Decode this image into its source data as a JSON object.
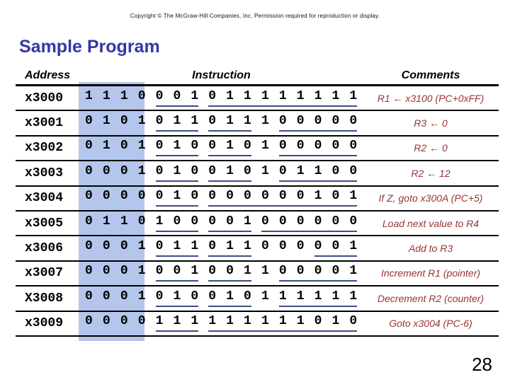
{
  "slide": {
    "copyright": "Copyright © The McGraw-Hill Companies, Inc. Permission required for reproduction or display.",
    "title": "Sample Program",
    "page_number": "28"
  },
  "colors": {
    "title": "#3636a8",
    "comment": "#993333",
    "highlight_band": "#b4c6ec",
    "underline": "#3d4c85"
  },
  "table": {
    "headers": [
      "Address",
      "Instruction",
      "Comments"
    ],
    "rows": [
      {
        "address": "x3000",
        "bit_groups": [
          {
            "bits": "1110",
            "underline": false
          },
          {
            "bits": "001",
            "underline": true
          },
          {
            "bits": "011111111",
            "underline": true
          }
        ],
        "comment": "R1 ← x3100 (PC+0xFF)"
      },
      {
        "address": "x3001",
        "bit_groups": [
          {
            "bits": "0101",
            "underline": false
          },
          {
            "bits": "011",
            "underline": true
          },
          {
            "bits": "011",
            "underline": true
          },
          {
            "bits": "1",
            "underline": false
          },
          {
            "bits": "00000",
            "underline": true
          }
        ],
        "comment": "R3 ← 0"
      },
      {
        "address": "x3002",
        "bit_groups": [
          {
            "bits": "0101",
            "underline": false
          },
          {
            "bits": "010",
            "underline": true
          },
          {
            "bits": "010",
            "underline": true
          },
          {
            "bits": "1",
            "underline": false
          },
          {
            "bits": "00000",
            "underline": true
          }
        ],
        "comment": "R2 ← 0"
      },
      {
        "address": "x3003",
        "bit_groups": [
          {
            "bits": "0001",
            "underline": false
          },
          {
            "bits": "010",
            "underline": true
          },
          {
            "bits": "010",
            "underline": true
          },
          {
            "bits": "1",
            "underline": false
          },
          {
            "bits": "01100",
            "underline": true
          }
        ],
        "comment": "R2 ← 12"
      },
      {
        "address": "x3004",
        "bit_groups": [
          {
            "bits": "0000",
            "underline": false
          },
          {
            "bits": "010",
            "underline": true
          },
          {
            "bits": "000000101",
            "underline": true
          }
        ],
        "comment": "If Z, goto x300A (PC+5)"
      },
      {
        "address": "x3005",
        "bit_groups": [
          {
            "bits": "0110",
            "underline": false
          },
          {
            "bits": "100",
            "underline": true
          },
          {
            "bits": "001",
            "underline": true
          },
          {
            "bits": "000000",
            "underline": true
          }
        ],
        "comment": "Load next value to R4"
      },
      {
        "address": "x3006",
        "bit_groups": [
          {
            "bits": "0001",
            "underline": false
          },
          {
            "bits": "011",
            "underline": true
          },
          {
            "bits": "011",
            "underline": true
          },
          {
            "bits": "000",
            "underline": false
          },
          {
            "bits": "001",
            "underline": true
          }
        ],
        "comment": "Add to R3"
      },
      {
        "address": "x3007",
        "bit_groups": [
          {
            "bits": "0001",
            "underline": false
          },
          {
            "bits": "001",
            "underline": true
          },
          {
            "bits": "001",
            "underline": true
          },
          {
            "bits": "1",
            "underline": false
          },
          {
            "bits": "00001",
            "underline": true
          }
        ],
        "comment": "Increment R1 (pointer)"
      },
      {
        "address": "X3008",
        "bit_groups": [
          {
            "bits": "0001",
            "underline": false
          },
          {
            "bits": "010",
            "underline": true
          },
          {
            "bits": "010",
            "underline": true
          },
          {
            "bits": "1",
            "underline": false
          },
          {
            "bits": "11111",
            "underline": true
          }
        ],
        "comment": "Decrement R2 (counter)"
      },
      {
        "address": "x3009",
        "bit_groups": [
          {
            "bits": "0000",
            "underline": false
          },
          {
            "bits": "111",
            "underline": true
          },
          {
            "bits": "111111010",
            "underline": true
          }
        ],
        "comment": "Goto x3004 (PC-6)"
      }
    ]
  }
}
